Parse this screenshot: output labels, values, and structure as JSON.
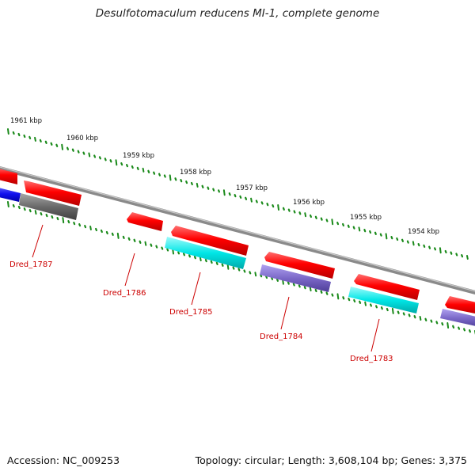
{
  "title": "Desulfotomaculum reducens MI-1, complete genome",
  "footer": {
    "accession": "Accession: NC_009253",
    "topology": "Topology: circular; Length: 3,608,104 bp; Genes: 3,375"
  },
  "colors": {
    "backbone": "#8a8a8a",
    "scale_ticks": "#1a8a1a",
    "forward_cds": "#ff0000",
    "reverse_cds": "#ff0000",
    "gene_label": "#cc0000",
    "cog_cyan": "#00e6e6",
    "cog_slate": "#7b68c8",
    "cog_gray": "#666666",
    "cog_blue": "#1010ee"
  },
  "scale_labels": [
    "1961 kbp",
    "1960 kbp",
    "1959 kbp",
    "1958 kbp",
    "1957 kbp",
    "1956 kbp",
    "1955 kbp",
    "1954 kbp"
  ],
  "genes": [
    {
      "label": "Dred_1787",
      "strand": "forward",
      "cog_color": "gray"
    },
    {
      "label": "Dred_1786",
      "strand": "forward",
      "cog_color": "none"
    },
    {
      "label": "Dred_1785",
      "strand": "forward",
      "cog_color": "cyan"
    },
    {
      "label": "Dred_1784",
      "strand": "forward",
      "cog_color": "slate"
    },
    {
      "label": "Dred_1783",
      "strand": "forward",
      "cog_color": "cyan"
    }
  ]
}
